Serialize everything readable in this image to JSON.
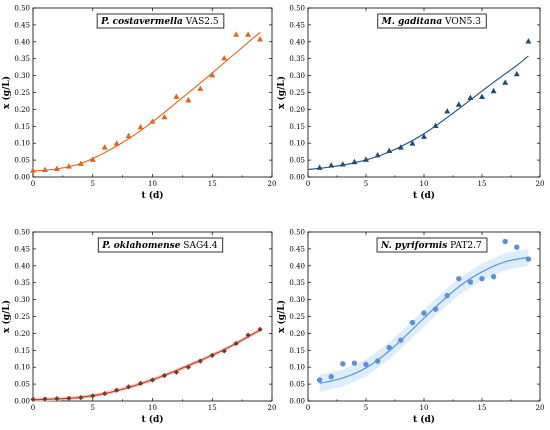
{
  "chart_data": [
    {
      "type": "scatter",
      "title_species": "P. costavermella",
      "title_strain": "VAS2.5",
      "xlabel": "t (d)",
      "ylabel": "x (g/L)",
      "xlim": [
        0,
        20
      ],
      "ylim": [
        0,
        0.5
      ],
      "xticks": [
        "0",
        "5",
        "10",
        "15",
        "20"
      ],
      "yticks": [
        "0.00",
        "0.05",
        "0.10",
        "0.15",
        "0.20",
        "0.25",
        "0.30",
        "0.35",
        "0.40",
        "0.45",
        "0.50"
      ],
      "marker": "triangle",
      "color": "#E2661A",
      "series": [
        {
          "points": [
            [
              0,
              0.02
            ],
            [
              1,
              0.022
            ],
            [
              2,
              0.025
            ],
            [
              3,
              0.032
            ],
            [
              4,
              0.04
            ],
            [
              5,
              0.052
            ],
            [
              6,
              0.088
            ],
            [
              7,
              0.1
            ],
            [
              8,
              0.122
            ],
            [
              9,
              0.148
            ],
            [
              10,
              0.165
            ],
            [
              11,
              0.178
            ],
            [
              12,
              0.238
            ],
            [
              13,
              0.228
            ],
            [
              14,
              0.262
            ],
            [
              15,
              0.302
            ],
            [
              16,
              0.352
            ],
            [
              17,
              0.422
            ],
            [
              18,
              0.422
            ],
            [
              19,
              0.408
            ]
          ],
          "fit": [
            [
              0,
              0.018
            ],
            [
              2,
              0.024
            ],
            [
              4,
              0.04
            ],
            [
              6,
              0.072
            ],
            [
              8,
              0.113
            ],
            [
              10,
              0.163
            ],
            [
              12,
              0.22
            ],
            [
              14,
              0.278
            ],
            [
              16,
              0.338
            ],
            [
              18,
              0.398
            ],
            [
              19,
              0.428
            ]
          ]
        }
      ]
    },
    {
      "type": "scatter",
      "title_species": "M. gaditana",
      "title_strain": "VON5.3",
      "xlabel": "t (d)",
      "ylabel": "x (g/L)",
      "xlim": [
        0,
        20
      ],
      "ylim": [
        0,
        0.5
      ],
      "xticks": [
        "0",
        "5",
        "10",
        "15",
        "20"
      ],
      "yticks": [
        "0.00",
        "0.05",
        "0.10",
        "0.15",
        "0.20",
        "0.25",
        "0.30",
        "0.35",
        "0.40",
        "0.45",
        "0.50"
      ],
      "marker": "triangle",
      "color": "#1F4E79",
      "series": [
        {
          "points": [
            [
              1,
              0.028
            ],
            [
              2,
              0.035
            ],
            [
              3,
              0.038
            ],
            [
              4,
              0.045
            ],
            [
              5,
              0.052
            ],
            [
              6,
              0.065
            ],
            [
              7,
              0.078
            ],
            [
              8,
              0.088
            ],
            [
              9,
              0.1
            ],
            [
              10,
              0.12
            ],
            [
              11,
              0.152
            ],
            [
              12,
              0.195
            ],
            [
              13,
              0.215
            ],
            [
              14,
              0.235
            ],
            [
              15,
              0.238
            ],
            [
              16,
              0.255
            ],
            [
              17,
              0.28
            ],
            [
              18,
              0.305
            ],
            [
              19,
              0.402
            ]
          ],
          "fit": [
            [
              0,
              0.022
            ],
            [
              2,
              0.03
            ],
            [
              4,
              0.042
            ],
            [
              6,
              0.061
            ],
            [
              8,
              0.09
            ],
            [
              10,
              0.128
            ],
            [
              12,
              0.176
            ],
            [
              14,
              0.228
            ],
            [
              16,
              0.28
            ],
            [
              18,
              0.33
            ],
            [
              19,
              0.358
            ]
          ]
        }
      ]
    },
    {
      "type": "scatter",
      "title_species": "P. oklahomense",
      "title_strain": "SAG4.4",
      "xlabel": "t (d)",
      "ylabel": "x (g/L)",
      "xlim": [
        0,
        20
      ],
      "ylim": [
        0,
        0.5
      ],
      "xticks": [
        "0",
        "5",
        "10",
        "15",
        "20"
      ],
      "yticks": [
        "0.00",
        "0.05",
        "0.10",
        "0.15",
        "0.20",
        "0.25",
        "0.30",
        "0.35",
        "0.40",
        "0.45",
        "0.50"
      ],
      "marker": "diamond",
      "color": "#7A3A1E",
      "fitcolor": "#C0392B",
      "series": [
        {
          "points": [
            [
              0,
              0.005
            ],
            [
              1,
              0.006
            ],
            [
              2,
              0.007
            ],
            [
              3,
              0.008
            ],
            [
              4,
              0.01
            ],
            [
              5,
              0.015
            ],
            [
              6,
              0.022
            ],
            [
              7,
              0.032
            ],
            [
              8,
              0.042
            ],
            [
              9,
              0.052
            ],
            [
              10,
              0.062
            ],
            [
              11,
              0.075
            ],
            [
              12,
              0.085
            ],
            [
              13,
              0.1
            ],
            [
              14,
              0.118
            ],
            [
              15,
              0.135
            ],
            [
              16,
              0.148
            ],
            [
              17,
              0.17
            ],
            [
              18,
              0.195
            ],
            [
              19,
              0.212
            ]
          ],
          "fit": [
            [
              0,
              0.004
            ],
            [
              2,
              0.006
            ],
            [
              4,
              0.011
            ],
            [
              6,
              0.022
            ],
            [
              8,
              0.04
            ],
            [
              10,
              0.063
            ],
            [
              12,
              0.09
            ],
            [
              14,
              0.12
            ],
            [
              16,
              0.152
            ],
            [
              18,
              0.19
            ],
            [
              19,
              0.21
            ]
          ]
        }
      ]
    },
    {
      "type": "scatter",
      "title_species": "N. pyriformis",
      "title_strain": "PAT2.7",
      "xlabel": "t (d)",
      "ylabel": "x (g/L)",
      "xlim": [
        0,
        20
      ],
      "ylim": [
        0,
        0.5
      ],
      "xticks": [
        "0",
        "5",
        "10",
        "15",
        "20"
      ],
      "yticks": [
        "0.00",
        "0.05",
        "0.10",
        "0.15",
        "0.20",
        "0.25",
        "0.30",
        "0.35",
        "0.40",
        "0.45",
        "0.50"
      ],
      "marker": "circle",
      "color": "#5B8FDB",
      "fitcolor": "#4A90D9",
      "series": [
        {
          "points": [
            [
              1,
              0.062
            ],
            [
              2,
              0.072
            ],
            [
              3,
              0.11
            ],
            [
              4,
              0.112
            ],
            [
              5,
              0.108
            ],
            [
              6,
              0.118
            ],
            [
              7,
              0.158
            ],
            [
              8,
              0.18
            ],
            [
              9,
              0.232
            ],
            [
              10,
              0.26
            ],
            [
              11,
              0.272
            ],
            [
              12,
              0.312
            ],
            [
              13,
              0.362
            ],
            [
              14,
              0.352
            ],
            [
              15,
              0.362
            ],
            [
              16,
              0.368
            ],
            [
              17,
              0.472
            ],
            [
              18,
              0.455
            ],
            [
              19,
              0.42
            ]
          ],
          "fit": [
            [
              1,
              0.052
            ],
            [
              3,
              0.068
            ],
            [
              5,
              0.098
            ],
            [
              7,
              0.148
            ],
            [
              9,
              0.212
            ],
            [
              11,
              0.278
            ],
            [
              13,
              0.338
            ],
            [
              15,
              0.382
            ],
            [
              17,
              0.412
            ],
            [
              19,
              0.425
            ]
          ]
        }
      ]
    }
  ]
}
